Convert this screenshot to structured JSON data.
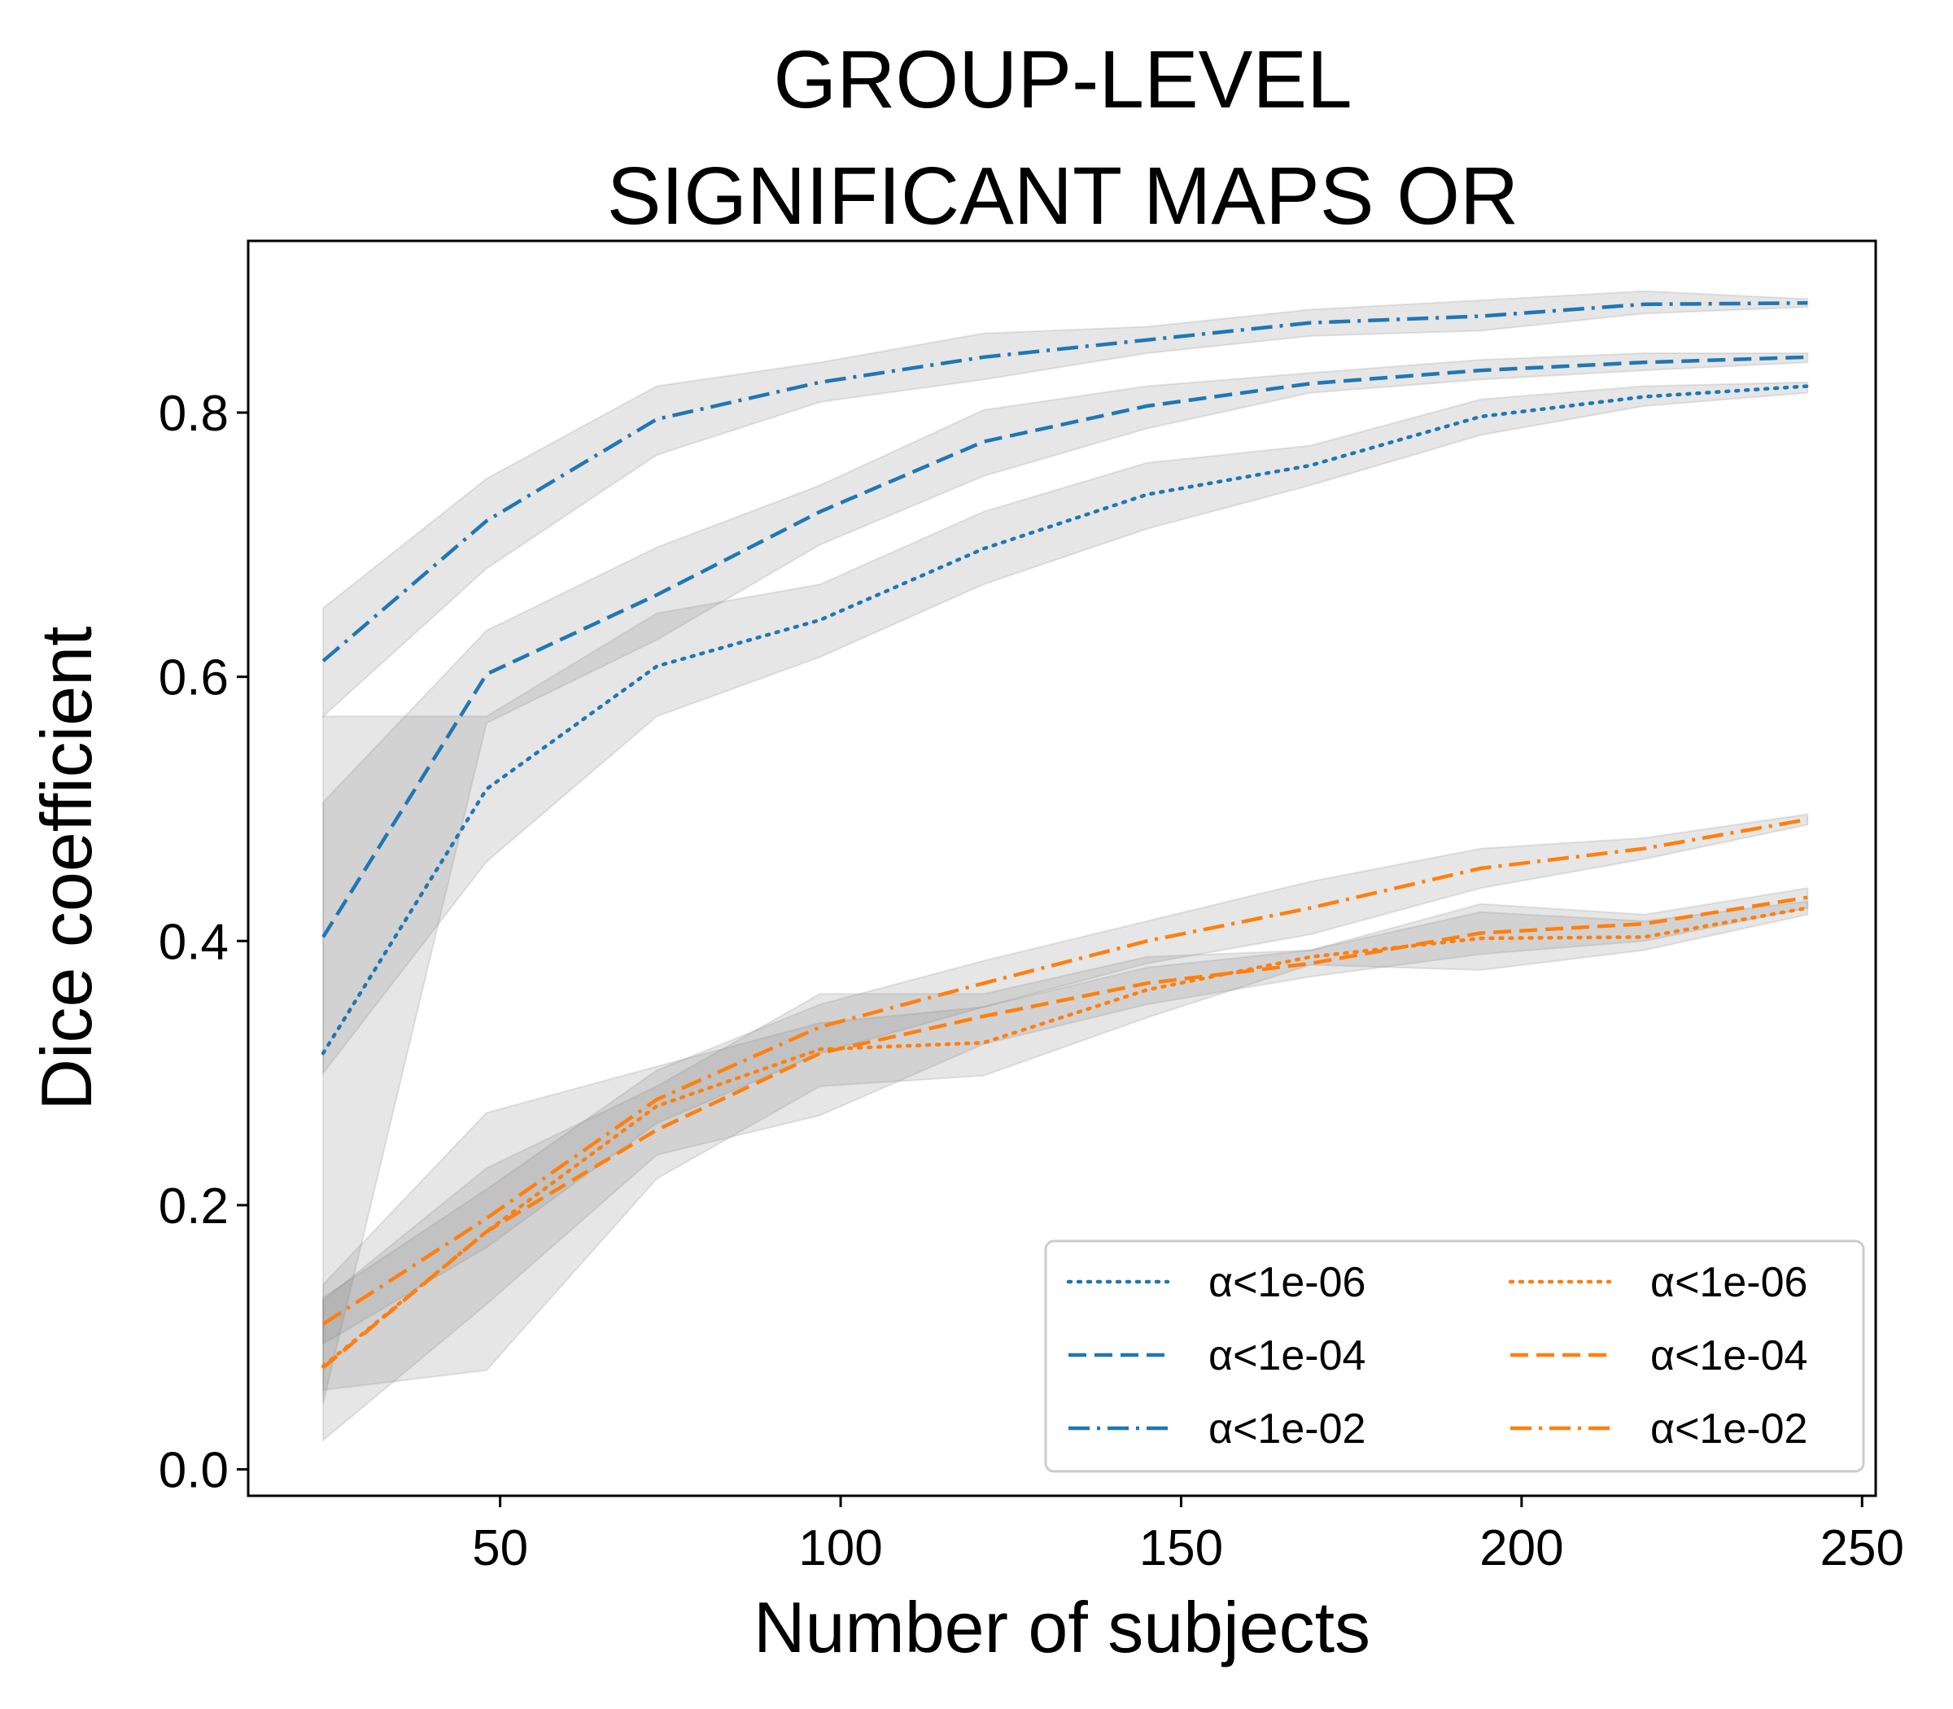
{
  "chart_data": {
    "type": "line",
    "title_lines": [
      "GROUP-LEVEL",
      "SIGNIFICANT MAPS OR"
    ],
    "xlabel": "Number of subjects",
    "ylabel": "Dice coefficient",
    "xlim": [
      13,
      252
    ],
    "ylim": [
      -0.02,
      0.93
    ],
    "xticks": [
      50,
      100,
      150,
      200,
      250
    ],
    "xtick_labels": [
      "50",
      "100",
      "150",
      "200",
      "250"
    ],
    "yticks": [
      0.0,
      0.2,
      0.4,
      0.6,
      0.8
    ],
    "ytick_labels": [
      "0.0",
      "0.2",
      "0.4",
      "0.6",
      "0.8"
    ],
    "grid": false,
    "legend_position": "lower-right",
    "legend_columns": 2,
    "band_color": "#808080",
    "x": [
      24,
      48,
      73,
      97,
      121,
      145,
      169,
      194,
      218,
      242
    ],
    "series": [
      {
        "name": "α<1e-06",
        "color": "#1f77b4",
        "style": "dotted",
        "values": [
          0.315,
          0.515,
          0.608,
          0.643,
          0.697,
          0.738,
          0.76,
          0.797,
          0.812,
          0.82
        ],
        "lower": [
          0.3,
          0.46,
          0.57,
          0.615,
          0.67,
          0.712,
          0.745,
          0.783,
          0.805,
          0.815
        ],
        "upper": [
          0.57,
          0.57,
          0.648,
          0.67,
          0.725,
          0.762,
          0.775,
          0.81,
          0.82,
          0.823
        ]
      },
      {
        "name": "α<1e-04",
        "color": "#1f77b4",
        "style": "dashed",
        "values": [
          0.403,
          0.602,
          0.662,
          0.725,
          0.778,
          0.805,
          0.822,
          0.832,
          0.838,
          0.842
        ],
        "lower": [
          0.05,
          0.565,
          0.628,
          0.7,
          0.752,
          0.788,
          0.815,
          0.825,
          0.832,
          0.838
        ],
        "upper": [
          0.505,
          0.635,
          0.698,
          0.745,
          0.802,
          0.82,
          0.83,
          0.84,
          0.845,
          0.845
        ]
      },
      {
        "name": "α<1e-02",
        "color": "#1f77b4",
        "style": "dashdot",
        "values": [
          0.612,
          0.718,
          0.795,
          0.823,
          0.842,
          0.855,
          0.868,
          0.873,
          0.882,
          0.883
        ],
        "lower": [
          0.57,
          0.682,
          0.768,
          0.808,
          0.825,
          0.845,
          0.858,
          0.862,
          0.875,
          0.88
        ],
        "upper": [
          0.652,
          0.75,
          0.82,
          0.838,
          0.86,
          0.865,
          0.878,
          0.885,
          0.892,
          0.886
        ]
      },
      {
        "name": "α<1e-06",
        "color": "#ff7f0e",
        "style": "dotted",
        "values": [
          0.078,
          0.18,
          0.275,
          0.318,
          0.323,
          0.363,
          0.388,
          0.402,
          0.403,
          0.425
        ],
        "lower": [
          0.06,
          0.075,
          0.22,
          0.29,
          0.298,
          0.342,
          0.382,
          0.378,
          0.393,
          0.42
        ],
        "upper": [
          0.14,
          0.27,
          0.305,
          0.338,
          0.35,
          0.38,
          0.393,
          0.422,
          0.415,
          0.43
        ]
      },
      {
        "name": "α<1e-04",
        "color": "#ff7f0e",
        "style": "dashed",
        "values": [
          0.077,
          0.18,
          0.257,
          0.315,
          0.343,
          0.368,
          0.383,
          0.406,
          0.413,
          0.433
        ],
        "lower": [
          0.022,
          0.125,
          0.238,
          0.268,
          0.322,
          0.352,
          0.373,
          0.39,
          0.4,
          0.425
        ],
        "upper": [
          0.128,
          0.228,
          0.29,
          0.36,
          0.36,
          0.388,
          0.393,
          0.428,
          0.42,
          0.44
        ]
      },
      {
        "name": "α<1e-02",
        "color": "#ff7f0e",
        "style": "dashdot",
        "values": [
          0.11,
          0.19,
          0.28,
          0.335,
          0.368,
          0.4,
          0.425,
          0.455,
          0.47,
          0.492
        ],
        "lower": [
          0.095,
          0.168,
          0.262,
          0.315,
          0.35,
          0.383,
          0.405,
          0.44,
          0.462,
          0.488
        ],
        "upper": [
          0.13,
          0.212,
          0.302,
          0.352,
          0.385,
          0.415,
          0.445,
          0.47,
          0.478,
          0.496
        ]
      }
    ]
  }
}
